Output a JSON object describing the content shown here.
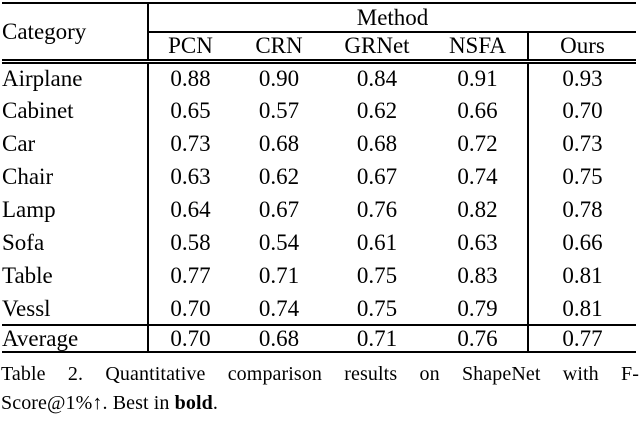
{
  "colors": {
    "background": "#ffffff",
    "text": "#000000",
    "rule": "#000000"
  },
  "table": {
    "title_col_header": "Category",
    "group_header": "Method",
    "method_headers": [
      "PCN",
      "CRN",
      "GRNet",
      "NSFA",
      "Ours"
    ],
    "rows": [
      {
        "category": "Airplane",
        "values": [
          {
            "v": "0.88"
          },
          {
            "v": "0.90"
          },
          {
            "v": "0.84"
          },
          {
            "v": "0.91"
          },
          {
            "v": "0.93",
            "bold": true
          }
        ]
      },
      {
        "category": "Cabinet",
        "values": [
          {
            "v": "0.65"
          },
          {
            "v": "0.57"
          },
          {
            "v": "0.62"
          },
          {
            "v": "0.66"
          },
          {
            "v": "0.70",
            "bold": true
          }
        ]
      },
      {
        "category": "Car",
        "values": [
          {
            "v": "0.73"
          },
          {
            "v": "0.68"
          },
          {
            "v": "0.68"
          },
          {
            "v": "0.72"
          },
          {
            "v": "0.73",
            "bold": true
          }
        ]
      },
      {
        "category": "Chair",
        "values": [
          {
            "v": "0.63"
          },
          {
            "v": "0.62"
          },
          {
            "v": "0.67"
          },
          {
            "v": "0.74"
          },
          {
            "v": "0.75",
            "bold": true
          }
        ]
      },
      {
        "category": "Lamp",
        "values": [
          {
            "v": "0.64"
          },
          {
            "v": "0.67"
          },
          {
            "v": "0.76"
          },
          {
            "v": "0.82",
            "bold": true
          },
          {
            "v": "0.78"
          }
        ]
      },
      {
        "category": "Sofa",
        "values": [
          {
            "v": "0.58"
          },
          {
            "v": "0.54"
          },
          {
            "v": "0.61"
          },
          {
            "v": "0.63"
          },
          {
            "v": "0.66",
            "bold": true
          }
        ]
      },
      {
        "category": "Table",
        "values": [
          {
            "v": "0.77"
          },
          {
            "v": "0.71"
          },
          {
            "v": "0.75"
          },
          {
            "v": "0.83",
            "bold": true
          },
          {
            "v": "0.81"
          }
        ]
      },
      {
        "category": "Vessl",
        "values": [
          {
            "v": "0.70"
          },
          {
            "v": "0.74"
          },
          {
            "v": "0.75"
          },
          {
            "v": "0.79"
          },
          {
            "v": "0.81",
            "bold": true
          }
        ]
      }
    ],
    "summary_row": {
      "category": "Average",
      "values": [
        {
          "v": "0.70"
        },
        {
          "v": "0.68"
        },
        {
          "v": "0.71"
        },
        {
          "v": "0.76"
        },
        {
          "v": "0.77",
          "bold": true
        }
      ]
    }
  },
  "caption": {
    "line1": "Table 2. Quantitative comparison results on ShapeNet with F-",
    "line2_pre": "Score@1%↑. Best in ",
    "line2_bold": "bold",
    "line2_post": "."
  }
}
